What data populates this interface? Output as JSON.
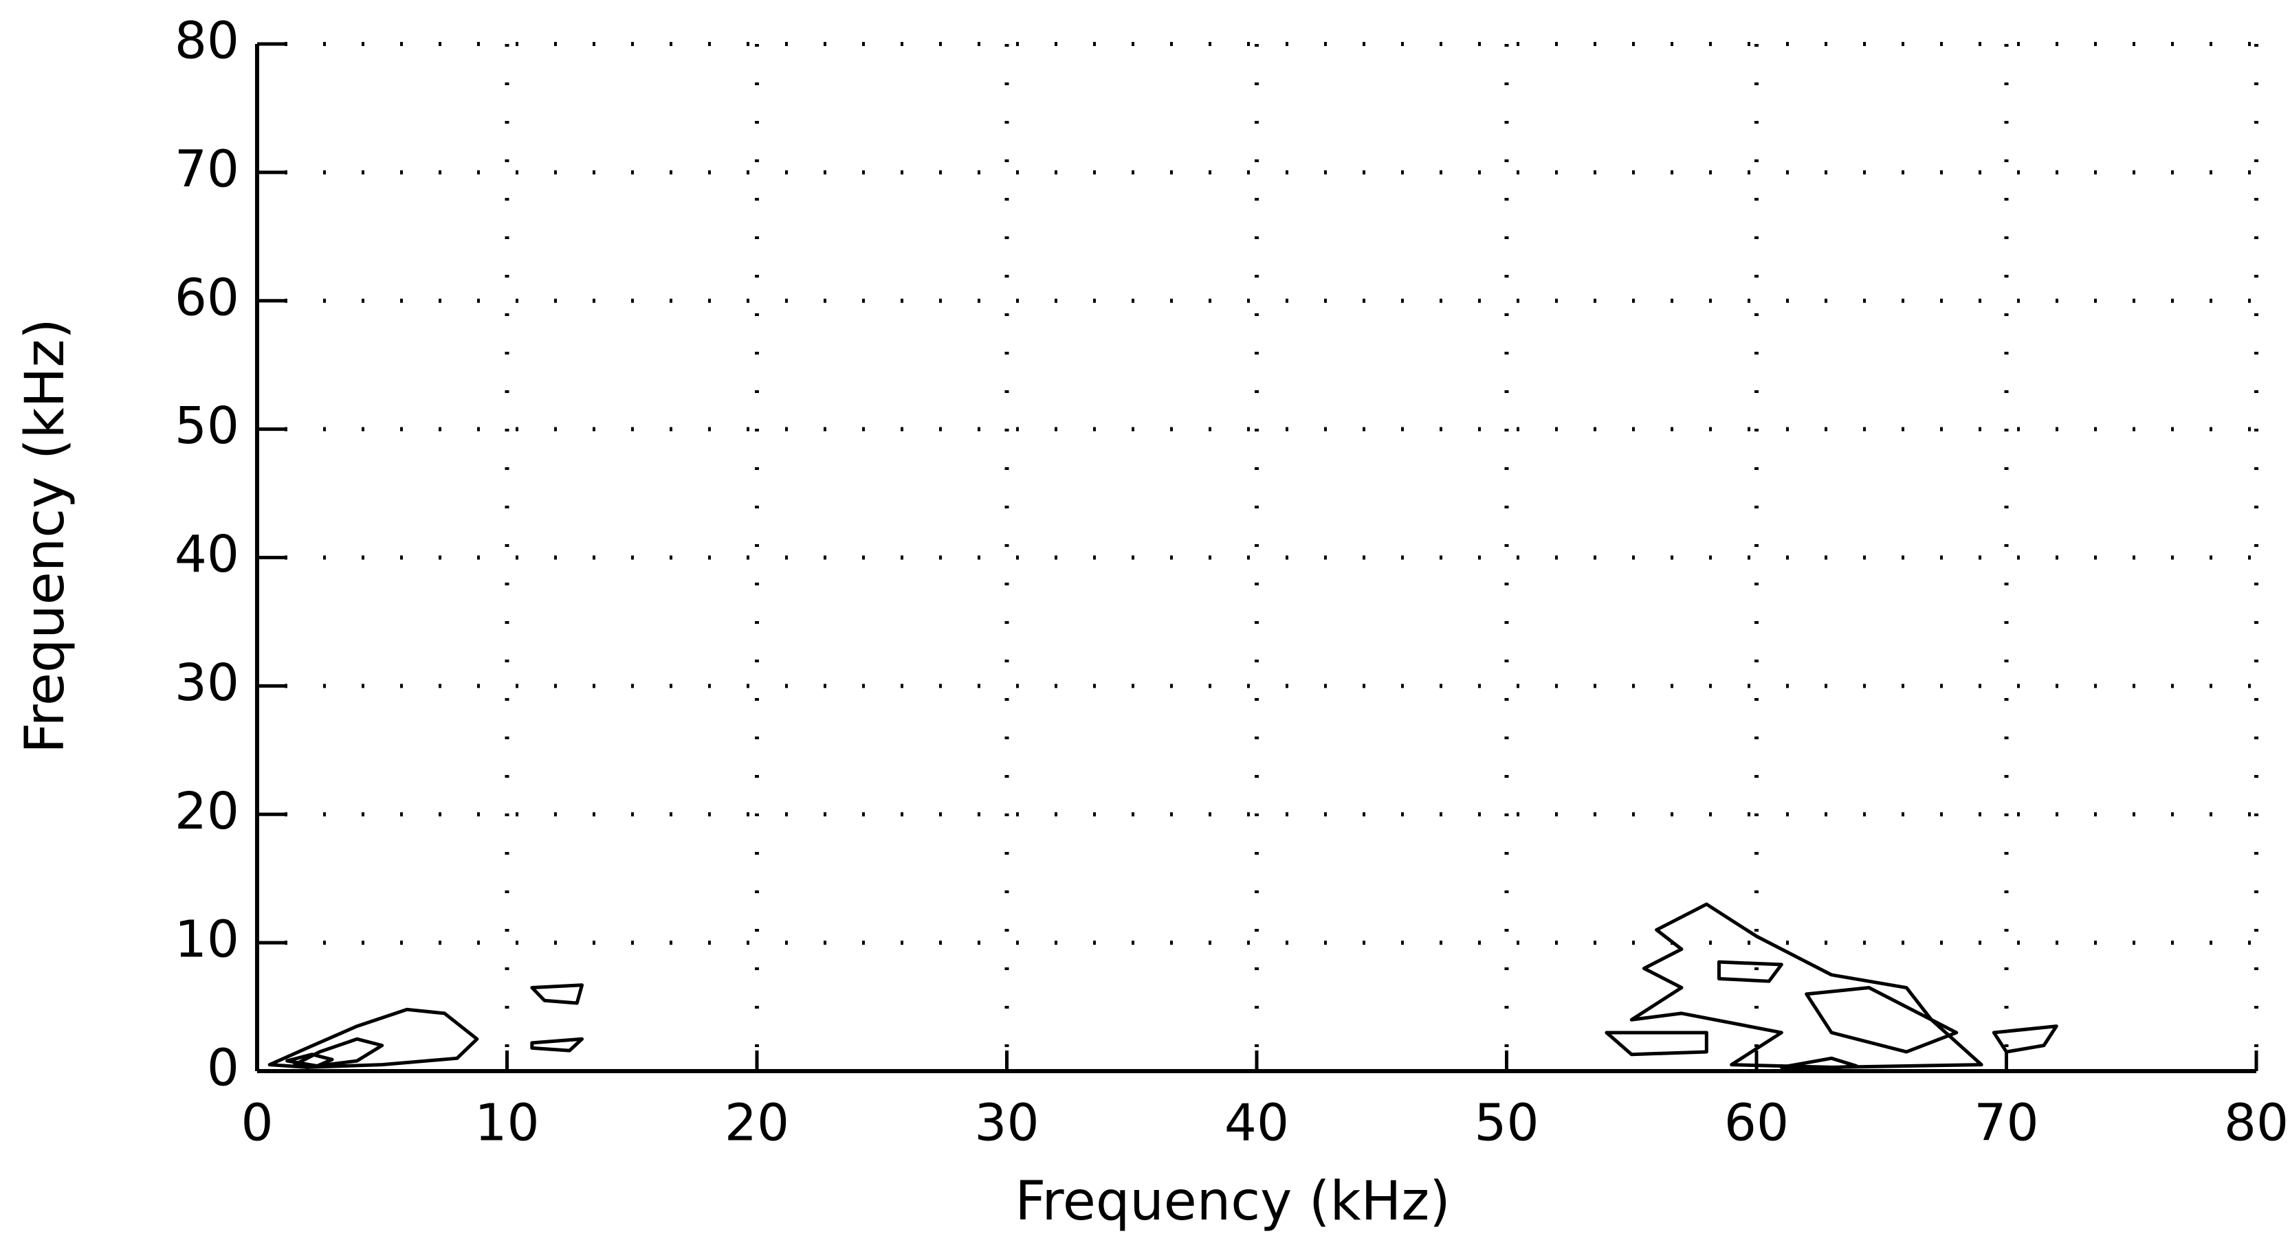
{
  "chart_data": {
    "type": "contour",
    "x_label": "Frequency (kHz)",
    "y_label": "Frequency (kHz)",
    "xlim": [
      0,
      80
    ],
    "ylim": [
      0,
      80
    ],
    "xticks": [
      0,
      10,
      20,
      30,
      40,
      50,
      60,
      70,
      80
    ],
    "yticks": [
      0,
      10,
      20,
      30,
      40,
      50,
      60,
      70,
      80
    ],
    "grid": true,
    "color": "#000000",
    "series": [
      {
        "x": [
          0.5,
          2,
          4,
          6,
          7.5,
          8.8,
          8,
          5,
          2
        ],
        "values": [
          0.5,
          1.8,
          3.5,
          4.8,
          4.5,
          2.5,
          1,
          0.5,
          0.3
        ]
      },
      {
        "x": [
          1.5,
          2.5,
          4,
          5,
          4,
          2
        ],
        "values": [
          0.5,
          1.5,
          2.5,
          2,
          0.8,
          0.3
        ]
      },
      {
        "x": [
          1.2,
          2.2,
          3,
          2.4
        ],
        "values": [
          0.8,
          1.3,
          0.9,
          0.4
        ]
      },
      {
        "x": [
          11,
          13,
          12.8,
          11.5
        ],
        "values": [
          6.5,
          6.7,
          5.3,
          5.5
        ]
      },
      {
        "x": [
          11,
          13,
          12.5,
          11
        ],
        "values": [
          2.2,
          2.5,
          1.6,
          1.8
        ]
      },
      {
        "x": [
          56,
          58,
          60,
          63,
          66,
          67,
          69,
          63,
          59,
          61,
          57,
          55,
          57,
          55.5,
          57
        ],
        "values": [
          11,
          13,
          10.5,
          7.5,
          6.5,
          4,
          0.5,
          0.3,
          0.5,
          3,
          4.5,
          4,
          6.5,
          8,
          9.5
        ]
      },
      {
        "x": [
          54,
          58,
          58,
          55
        ],
        "values": [
          3,
          3,
          1.5,
          1.3
        ]
      },
      {
        "x": [
          69.5,
          72,
          71.5,
          70
        ],
        "values": [
          3,
          3.5,
          2,
          1.5
        ]
      },
      {
        "x": [
          58.5,
          61,
          60.5,
          58.5
        ],
        "values": [
          8.5,
          8.3,
          7,
          7.2
        ]
      },
      {
        "x": [
          62,
          64.5,
          68,
          66,
          63
        ],
        "values": [
          6,
          6.5,
          3,
          1.5,
          3
        ]
      },
      {
        "x": [
          61,
          63,
          64,
          62
        ],
        "values": [
          0.3,
          1,
          0.4,
          0.1
        ]
      }
    ]
  }
}
